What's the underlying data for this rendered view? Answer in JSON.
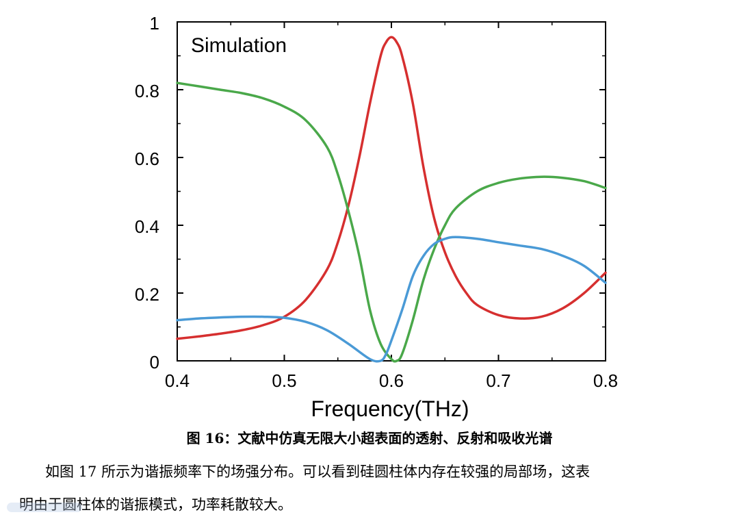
{
  "chart_data": {
    "type": "line",
    "title": "",
    "annotation": "Simulation",
    "xlabel": "Frequency(THz)",
    "ylabel": "",
    "xlim": [
      0.4,
      0.8
    ],
    "ylim": [
      0,
      1
    ],
    "xticks": [
      0.4,
      0.5,
      0.6,
      0.7,
      0.8
    ],
    "xtick_labels": [
      "0.4",
      "0.5",
      "0.6",
      "0.7",
      "0.8"
    ],
    "yticks": [
      0,
      0.2,
      0.4,
      0.6,
      0.8,
      1
    ],
    "ytick_labels": [
      "0",
      "0.2",
      "0.4",
      "0.6",
      "0.8",
      "1"
    ],
    "grid": false,
    "series": [
      {
        "color": "#d62f2f",
        "x": [
          0.4,
          0.42,
          0.44,
          0.46,
          0.48,
          0.5,
          0.52,
          0.54,
          0.55,
          0.56,
          0.57,
          0.58,
          0.59,
          0.595,
          0.6,
          0.605,
          0.61,
          0.62,
          0.63,
          0.64,
          0.65,
          0.66,
          0.67,
          0.68,
          0.7,
          0.72,
          0.74,
          0.76,
          0.78,
          0.8
        ],
        "y": [
          0.065,
          0.072,
          0.08,
          0.09,
          0.105,
          0.13,
          0.18,
          0.27,
          0.35,
          0.46,
          0.6,
          0.76,
          0.9,
          0.94,
          0.955,
          0.94,
          0.9,
          0.76,
          0.57,
          0.42,
          0.32,
          0.25,
          0.2,
          0.165,
          0.135,
          0.125,
          0.13,
          0.155,
          0.2,
          0.26
        ]
      },
      {
        "color": "#4aa84a",
        "x": [
          0.4,
          0.42,
          0.44,
          0.46,
          0.48,
          0.5,
          0.52,
          0.54,
          0.55,
          0.56,
          0.57,
          0.58,
          0.59,
          0.6,
          0.605,
          0.61,
          0.62,
          0.63,
          0.64,
          0.65,
          0.66,
          0.68,
          0.7,
          0.72,
          0.74,
          0.76,
          0.78,
          0.8
        ],
        "y": [
          0.82,
          0.81,
          0.8,
          0.79,
          0.775,
          0.75,
          0.71,
          0.63,
          0.55,
          0.44,
          0.31,
          0.15,
          0.05,
          0.005,
          0.0,
          0.02,
          0.12,
          0.24,
          0.33,
          0.4,
          0.45,
          0.5,
          0.525,
          0.538,
          0.543,
          0.54,
          0.53,
          0.51
        ]
      },
      {
        "color": "#4a9ad6",
        "x": [
          0.4,
          0.42,
          0.44,
          0.46,
          0.48,
          0.5,
          0.52,
          0.54,
          0.56,
          0.58,
          0.59,
          0.595,
          0.6,
          0.61,
          0.62,
          0.63,
          0.64,
          0.65,
          0.66,
          0.68,
          0.7,
          0.72,
          0.74,
          0.76,
          0.78,
          0.8
        ],
        "y": [
          0.12,
          0.125,
          0.128,
          0.13,
          0.13,
          0.127,
          0.115,
          0.09,
          0.05,
          0.005,
          0.0,
          0.02,
          0.06,
          0.15,
          0.25,
          0.31,
          0.345,
          0.36,
          0.365,
          0.36,
          0.35,
          0.34,
          0.33,
          0.31,
          0.28,
          0.23
        ]
      }
    ]
  },
  "caption": "图 16：文献中仿真无限大小超表面的透射、反射和吸收光谱",
  "paragraph": {
    "line1": "如图 17 所示为谐振频率下的场强分布。可以看到硅圆柱体内存在较强的局部场，这表",
    "line2": "明由于圆柱体的谐振模式，功率耗散较大。"
  }
}
